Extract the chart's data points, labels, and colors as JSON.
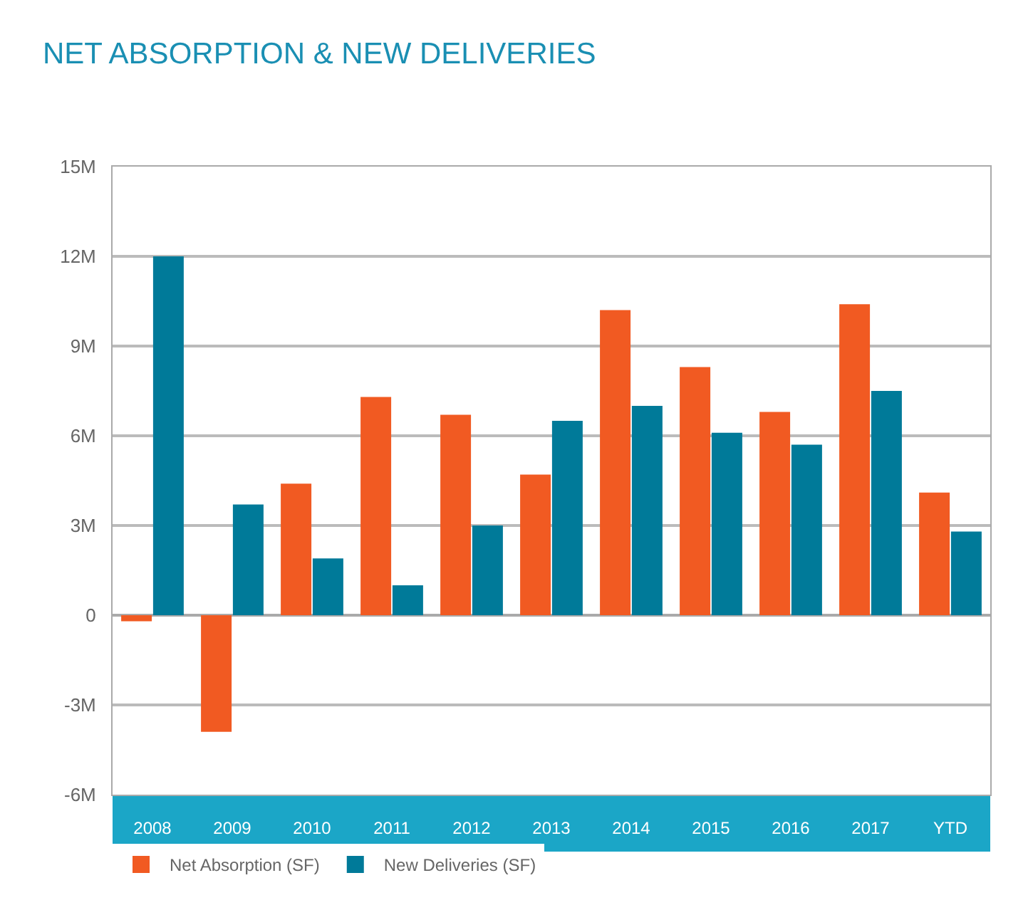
{
  "chart_data": {
    "type": "bar",
    "title": "NET ABSORPTION & NEW DELIVERIES",
    "categories": [
      "2008",
      "2009",
      "2010",
      "2011",
      "2012",
      "2013",
      "2014",
      "2015",
      "2016",
      "2017",
      "YTD"
    ],
    "series": [
      {
        "name": "Net Absorption (SF)",
        "color": "#f15a22",
        "values": [
          -0.2,
          -3.9,
          4.4,
          7.3,
          6.7,
          4.7,
          10.2,
          8.3,
          6.8,
          10.4,
          4.1
        ]
      },
      {
        "name": "New Deliveries (SF)",
        "color": "#007a99",
        "values": [
          12.0,
          3.7,
          1.9,
          1.0,
          3.0,
          6.5,
          7.0,
          6.1,
          5.7,
          7.5,
          2.8
        ]
      }
    ],
    "ylim": [
      -6,
      15
    ],
    "yticks": [
      {
        "value": -6,
        "label": "-6M"
      },
      {
        "value": -3,
        "label": "-3M"
      },
      {
        "value": 0,
        "label": "0"
      },
      {
        "value": 3,
        "label": "3M"
      },
      {
        "value": 6,
        "label": "6M"
      },
      {
        "value": 9,
        "label": "9M"
      },
      {
        "value": 12,
        "label": "12M"
      },
      {
        "value": 15,
        "label": "15M"
      }
    ],
    "grid": "y",
    "legend": "bottom left"
  }
}
